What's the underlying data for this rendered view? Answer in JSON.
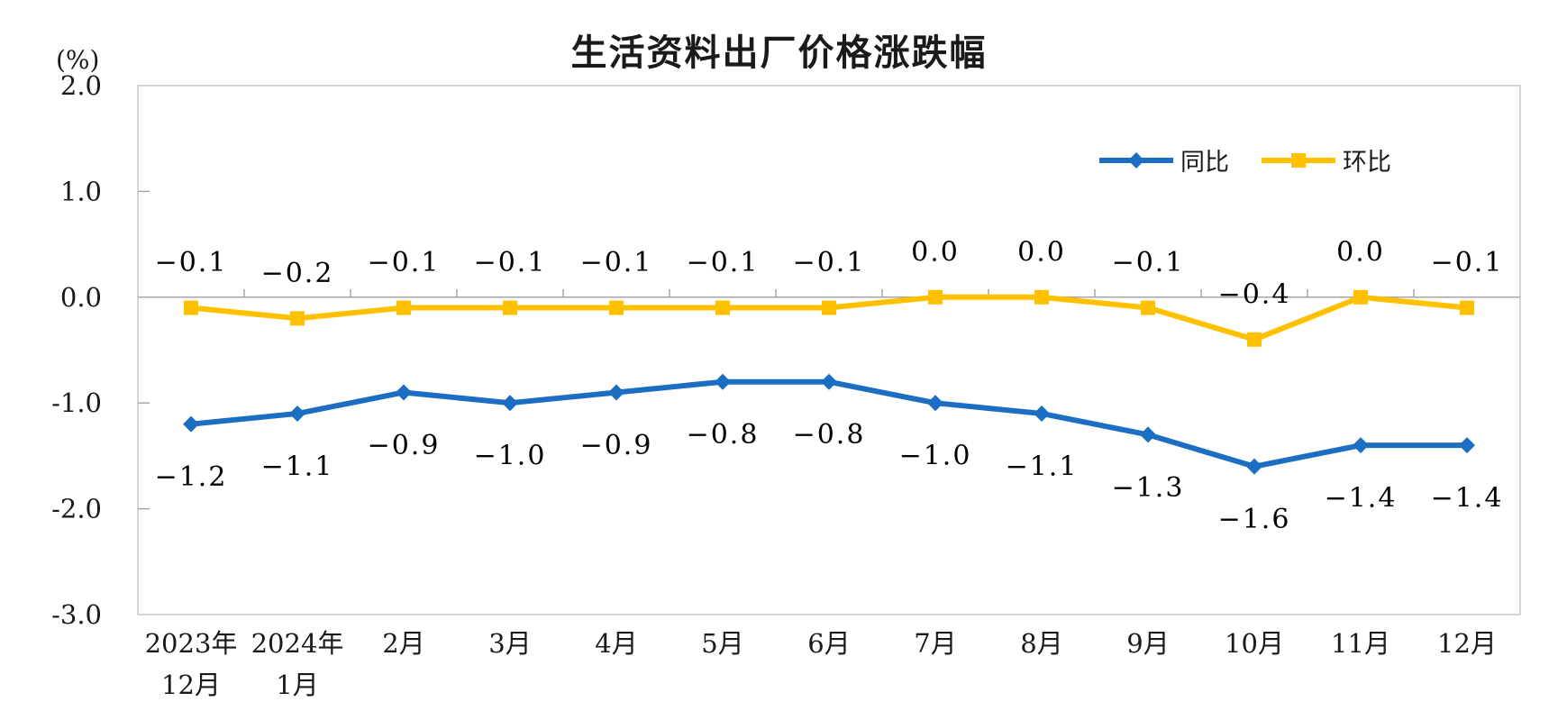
{
  "title": "生活资料出厂价格涨跌幅",
  "axis_unit": "(%)",
  "colors": {
    "tongbi_blue": "#1B6EC2",
    "huanbi_yellow": "#FFC000",
    "plot_border": "#C9C9C9",
    "zero_axis": "#A6A6A6",
    "text": "#1a1a1a"
  },
  "legend": {
    "items": [
      {
        "label": "同比",
        "color": "#1B6EC2",
        "marker": "diamond"
      },
      {
        "label": "环比",
        "color": "#FFC000",
        "marker": "square"
      }
    ],
    "position": "top-right"
  },
  "chart_data": {
    "type": "line",
    "title": "生活资料出厂价格涨跌幅",
    "ylabel": "(%)",
    "ylim": [
      -3.0,
      2.0
    ],
    "ytick_labels": [
      "2.0",
      "1.0",
      "0.0",
      "-1.0",
      "-2.0",
      "-3.0"
    ],
    "grid": false,
    "legend_position": "top-right",
    "categories": [
      [
        "2023年",
        "12月"
      ],
      [
        "2024年",
        "1月"
      ],
      [
        "2月"
      ],
      [
        "3月"
      ],
      [
        "4月"
      ],
      [
        "5月"
      ],
      [
        "6月"
      ],
      [
        "7月"
      ],
      [
        "8月"
      ],
      [
        "9月"
      ],
      [
        "10月"
      ],
      [
        "11月"
      ],
      [
        "12月"
      ]
    ],
    "series": [
      {
        "name": "同比",
        "color": "#1B6EC2",
        "marker": "diamond",
        "label_position": "below",
        "values": [
          -1.2,
          -1.1,
          -0.9,
          -1.0,
          -0.9,
          -0.8,
          -0.8,
          -1.0,
          -1.1,
          -1.3,
          -1.6,
          -1.4,
          -1.4
        ]
      },
      {
        "name": "环比",
        "color": "#FFC000",
        "marker": "square",
        "label_position": "above",
        "values": [
          -0.1,
          -0.2,
          -0.1,
          -0.1,
          -0.1,
          -0.1,
          -0.1,
          0.0,
          0.0,
          -0.1,
          -0.4,
          0.0,
          -0.1
        ]
      }
    ]
  }
}
